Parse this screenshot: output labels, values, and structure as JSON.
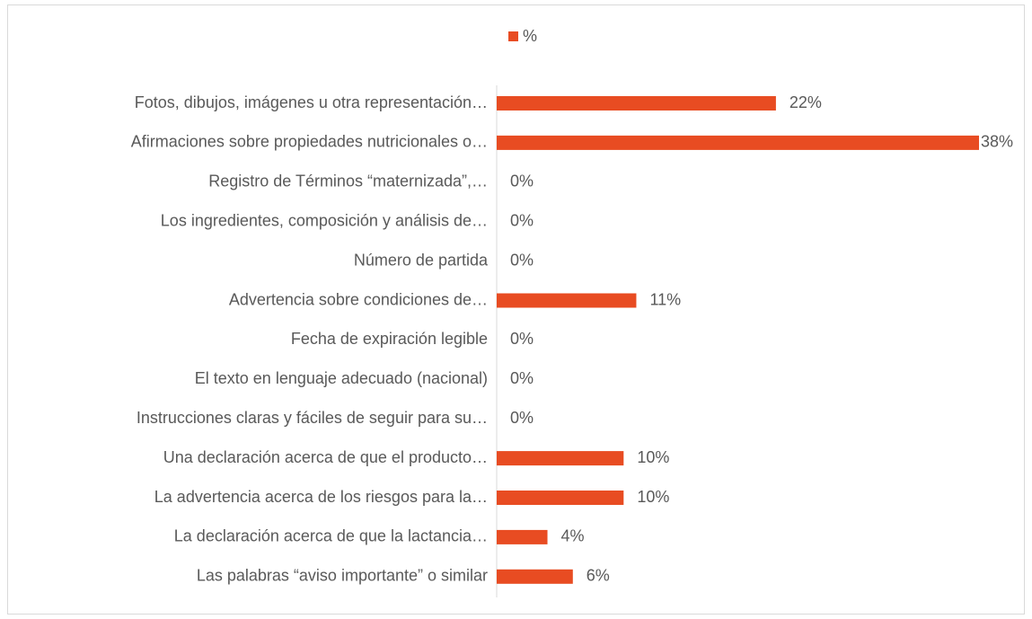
{
  "chart_data": {
    "type": "bar",
    "orientation": "horizontal",
    "categories": [
      "Fotos, dibujos, imágenes u otra representación…",
      "Afirmaciones sobre propiedades nutricionales o…",
      "Registro de Términos “maternizada”,…",
      "Los ingredientes, composición y análisis de…",
      "Número de partida",
      "Advertencia sobre condiciones de…",
      "Fecha de expiración legible",
      "El texto en lenguaje adecuado (nacional)",
      "Instrucciones claras y fáciles de seguir para su…",
      "Una declaración acerca de que el producto…",
      "La advertencia acerca de los riesgos para la…",
      "La declaración acerca de que la lactancia…",
      "Las palabras “aviso importante” o similar"
    ],
    "series": [
      {
        "name": "%",
        "color": "#e84c22",
        "values": [
          22,
          38,
          0,
          0,
          0,
          11,
          0,
          0,
          0,
          10,
          10,
          4,
          6
        ],
        "value_labels": [
          "22%",
          "38%",
          "0%",
          "0%",
          "0%",
          "11%",
          "0%",
          "0%",
          "0%",
          "10%",
          "10%",
          "4%",
          "6%"
        ]
      }
    ],
    "legend": "top"
  }
}
